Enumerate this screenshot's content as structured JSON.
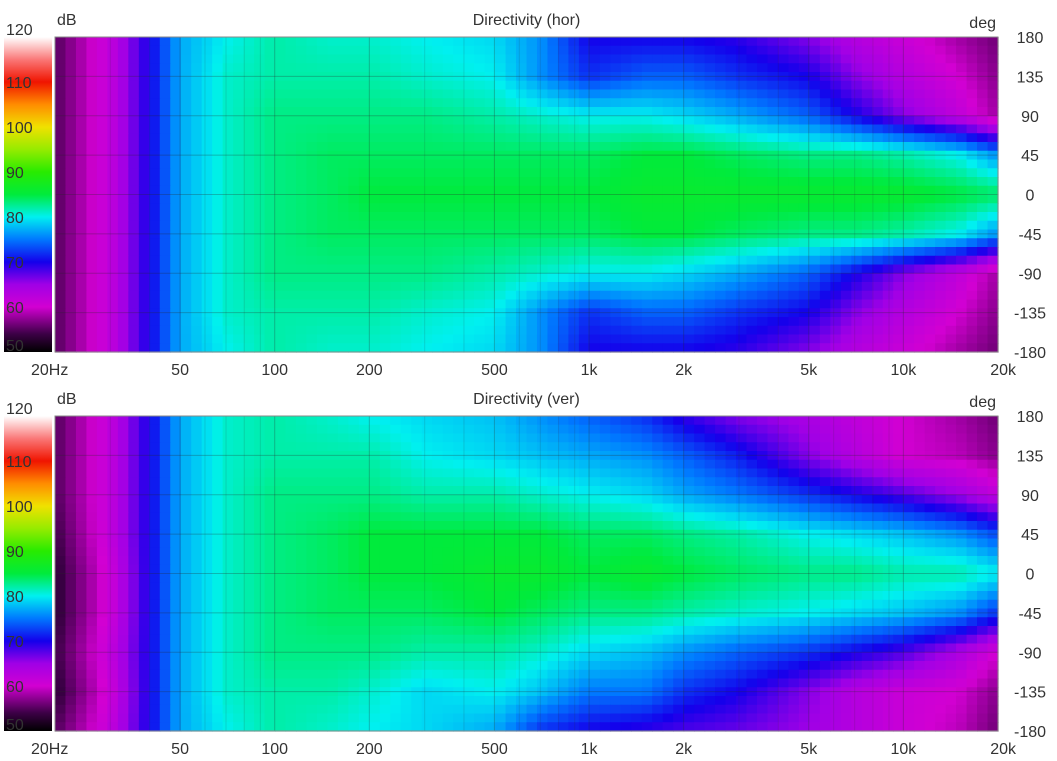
{
  "chart_data": [
    {
      "type": "heatmap",
      "title": "Directivity (hor)",
      "color_unit": "dB",
      "angle_unit": "deg",
      "colorbar_ticks": [
        "120",
        "110",
        "100",
        "90",
        "80",
        "70",
        "60",
        "50"
      ],
      "x_ticks": [
        {
          "f": 20,
          "label": "20Hz"
        },
        {
          "f": 50,
          "label": "50"
        },
        {
          "f": 100,
          "label": "100"
        },
        {
          "f": 200,
          "label": "200"
        },
        {
          "f": 500,
          "label": "500"
        },
        {
          "f": 1000,
          "label": "1k"
        },
        {
          "f": 2000,
          "label": "2k"
        },
        {
          "f": 5000,
          "label": "5k"
        },
        {
          "f": 10000,
          "label": "10k"
        },
        {
          "f": 20000,
          "label": "20k"
        }
      ],
      "y_ticks": [
        "180",
        "135",
        "90",
        "45",
        "0",
        "-45",
        "-90",
        "-135",
        "-180"
      ],
      "xlim": [
        20,
        20000
      ],
      "ylim": [
        -180,
        180
      ],
      "clim": [
        50,
        120
      ],
      "x_scale": "log",
      "grid": true,
      "frequencies_hz": [
        20,
        30,
        40,
        50,
        70,
        100,
        150,
        200,
        300,
        500,
        700,
        1000,
        1500,
        2000,
        3000,
        5000,
        7000,
        10000,
        15000,
        20000
      ],
      "angles_deg": [
        -180,
        -135,
        -90,
        -45,
        0,
        45,
        90,
        135,
        180
      ],
      "values_db": [
        [
          55,
          62,
          70,
          77,
          80,
          82,
          81,
          81,
          80,
          79,
          76,
          70,
          70,
          70,
          69,
          66,
          63,
          61,
          58,
          56
        ],
        [
          55,
          62,
          70,
          77,
          81,
          82,
          82,
          82,
          81,
          80,
          76,
          72,
          74,
          74,
          72,
          70,
          66,
          63,
          60,
          57
        ],
        [
          55,
          62,
          70,
          77,
          81,
          83,
          83,
          83,
          83,
          82,
          81,
          80,
          80,
          79,
          77,
          74,
          70,
          66,
          62,
          58
        ],
        [
          55,
          62,
          70,
          77,
          81,
          83,
          84,
          84,
          84,
          84,
          84,
          84,
          85,
          85,
          84,
          83,
          83,
          82,
          80,
          76
        ],
        [
          55,
          62,
          70,
          77,
          81,
          83,
          84,
          85,
          85,
          85,
          85,
          85,
          86,
          86,
          86,
          86,
          86,
          86,
          85,
          84
        ],
        [
          55,
          62,
          70,
          77,
          81,
          83,
          84,
          84,
          84,
          84,
          84,
          84,
          85,
          85,
          84,
          83,
          83,
          82,
          80,
          76
        ],
        [
          55,
          62,
          70,
          77,
          81,
          83,
          83,
          83,
          83,
          82,
          81,
          80,
          80,
          79,
          77,
          74,
          70,
          66,
          62,
          58
        ],
        [
          55,
          62,
          70,
          77,
          81,
          82,
          82,
          82,
          81,
          80,
          76,
          72,
          74,
          74,
          72,
          70,
          66,
          63,
          60,
          57
        ],
        [
          55,
          62,
          70,
          77,
          80,
          82,
          81,
          81,
          80,
          79,
          76,
          70,
          70,
          70,
          69,
          66,
          63,
          61,
          58,
          56
        ]
      ]
    },
    {
      "type": "heatmap",
      "title": "Directivity (ver)",
      "color_unit": "dB",
      "angle_unit": "deg",
      "colorbar_ticks": [
        "120",
        "110",
        "100",
        "90",
        "80",
        "70",
        "60",
        "50"
      ],
      "x_ticks": [
        {
          "f": 20,
          "label": "20Hz"
        },
        {
          "f": 50,
          "label": "50"
        },
        {
          "f": 100,
          "label": "100"
        },
        {
          "f": 200,
          "label": "200"
        },
        {
          "f": 500,
          "label": "500"
        },
        {
          "f": 1000,
          "label": "1k"
        },
        {
          "f": 2000,
          "label": "2k"
        },
        {
          "f": 5000,
          "label": "5k"
        },
        {
          "f": 10000,
          "label": "10k"
        },
        {
          "f": 20000,
          "label": "20k"
        }
      ],
      "y_ticks": [
        "180",
        "135",
        "90",
        "45",
        "0",
        "-45",
        "-90",
        "-135",
        "-180"
      ],
      "xlim": [
        20,
        20000
      ],
      "ylim": [
        -180,
        180
      ],
      "clim": [
        50,
        120
      ],
      "x_scale": "log",
      "grid": true,
      "frequencies_hz": [
        20,
        30,
        40,
        50,
        70,
        100,
        150,
        200,
        300,
        500,
        700,
        1000,
        1500,
        2000,
        3000,
        5000,
        7000,
        10000,
        15000,
        20000
      ],
      "angles_deg": [
        -180,
        -135,
        -90,
        -45,
        0,
        45,
        90,
        135,
        180
      ],
      "values_db": [
        [
          55,
          62,
          70,
          77,
          80,
          82,
          81,
          80,
          79,
          77,
          72,
          70,
          69,
          68,
          67,
          65,
          63,
          61,
          59,
          56
        ],
        [
          53,
          61,
          70,
          77,
          81,
          82,
          82,
          81,
          79,
          80,
          78,
          75,
          75,
          72,
          70,
          66,
          63,
          61,
          60,
          57
        ],
        [
          54,
          62,
          70,
          77,
          81,
          83,
          83,
          83,
          82,
          82,
          81,
          79,
          78,
          76,
          74,
          72,
          70,
          68,
          64,
          60
        ],
        [
          53,
          61,
          70,
          77,
          81,
          83,
          84,
          84,
          84,
          85,
          84,
          83,
          83,
          82,
          81,
          80,
          79,
          78,
          76,
          72
        ],
        [
          53,
          61,
          70,
          77,
          81,
          83,
          84,
          85,
          85,
          86,
          86,
          85,
          86,
          85,
          84,
          83,
          83,
          82,
          82,
          80
        ],
        [
          54,
          62,
          70,
          77,
          81,
          83,
          84,
          85,
          85,
          85,
          85,
          84,
          84,
          83,
          82,
          80,
          79,
          78,
          76,
          73
        ],
        [
          55,
          62,
          70,
          77,
          81,
          83,
          83,
          83,
          82,
          82,
          81,
          80,
          79,
          77,
          75,
          72,
          70,
          68,
          65,
          62
        ],
        [
          55,
          62,
          70,
          77,
          81,
          82,
          82,
          82,
          80,
          79,
          78,
          77,
          76,
          74,
          71,
          66,
          63,
          60,
          59,
          57
        ],
        [
          55,
          62,
          70,
          77,
          81,
          82,
          81,
          80,
          79,
          78,
          76,
          74,
          72,
          69,
          66,
          64,
          62,
          60,
          58,
          56
        ]
      ]
    }
  ]
}
